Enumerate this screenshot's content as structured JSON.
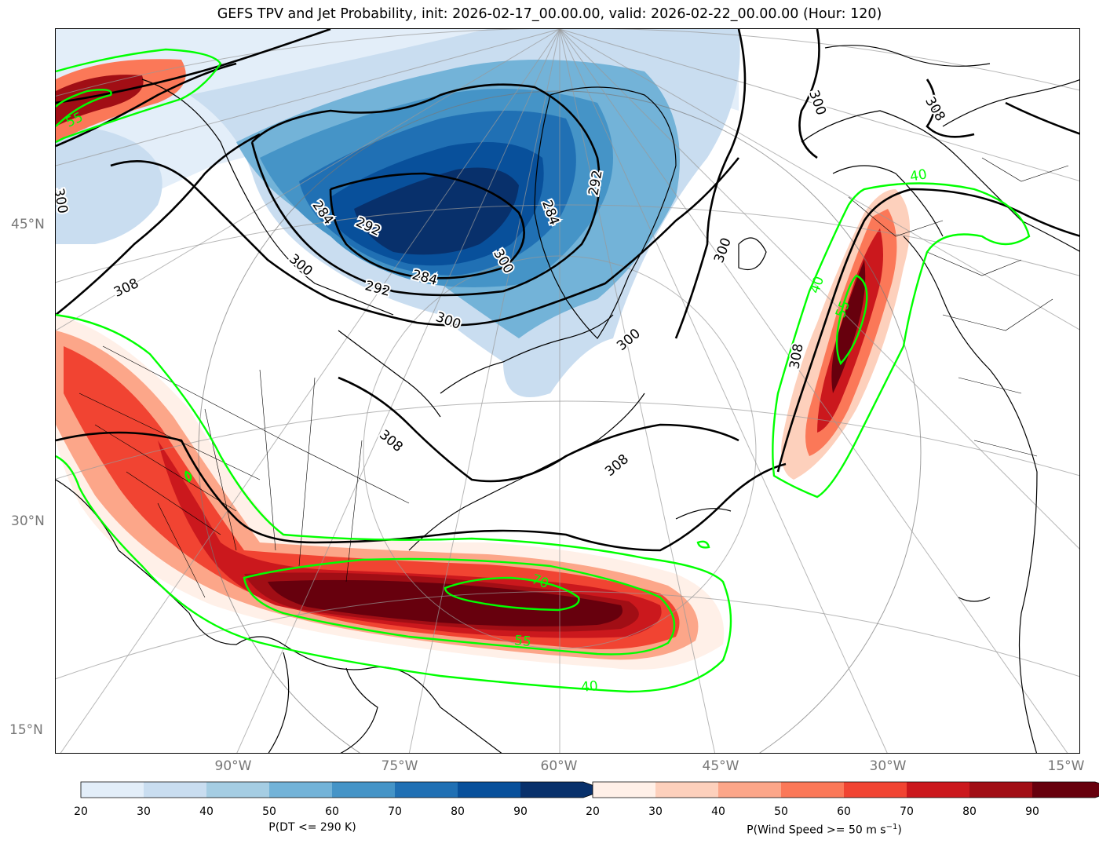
{
  "title": "GEFS TPV and Jet Probability, init: 2026-02-17_00.00.00, valid: 2026-02-22_00.00.00 (Hour: 120)",
  "latitude_labels": [
    "45°N",
    "30°N",
    "15°N"
  ],
  "longitude_labels": [
    "90°W",
    "75°W",
    "60°W",
    "45°W",
    "30°W",
    "15°W"
  ],
  "dt_contour_labels": [
    "300",
    "308",
    "292",
    "284",
    "300",
    "284",
    "292",
    "284",
    "300",
    "300",
    "308",
    "308",
    "300",
    "308",
    "308",
    "300",
    "292",
    "300"
  ],
  "jet_contour_labels": [
    "55",
    "40",
    "55",
    "70",
    "55",
    "40",
    "40"
  ],
  "colorbar_tpv": {
    "label": "P(DT <= 290 K)",
    "ticks": [
      "20",
      "30",
      "40",
      "50",
      "60",
      "70",
      "80",
      "90"
    ],
    "colors": [
      "#e3eef9",
      "#c9ddf0",
      "#a5cde3",
      "#73b3d8",
      "#4594c7",
      "#2070b4",
      "#08509b",
      "#08306b"
    ]
  },
  "colorbar_jet": {
    "label": "P(Wind Speed >= 50 m s",
    "label_sup": "−1",
    "label_end": ")",
    "ticks": [
      "20",
      "30",
      "40",
      "50",
      "60",
      "70",
      "80",
      "90"
    ],
    "colors": [
      "#fff0e8",
      "#fdd0bc",
      "#fca689",
      "#fb7858",
      "#f14432",
      "#cb181d",
      "#a10e15",
      "#67000d"
    ]
  }
}
